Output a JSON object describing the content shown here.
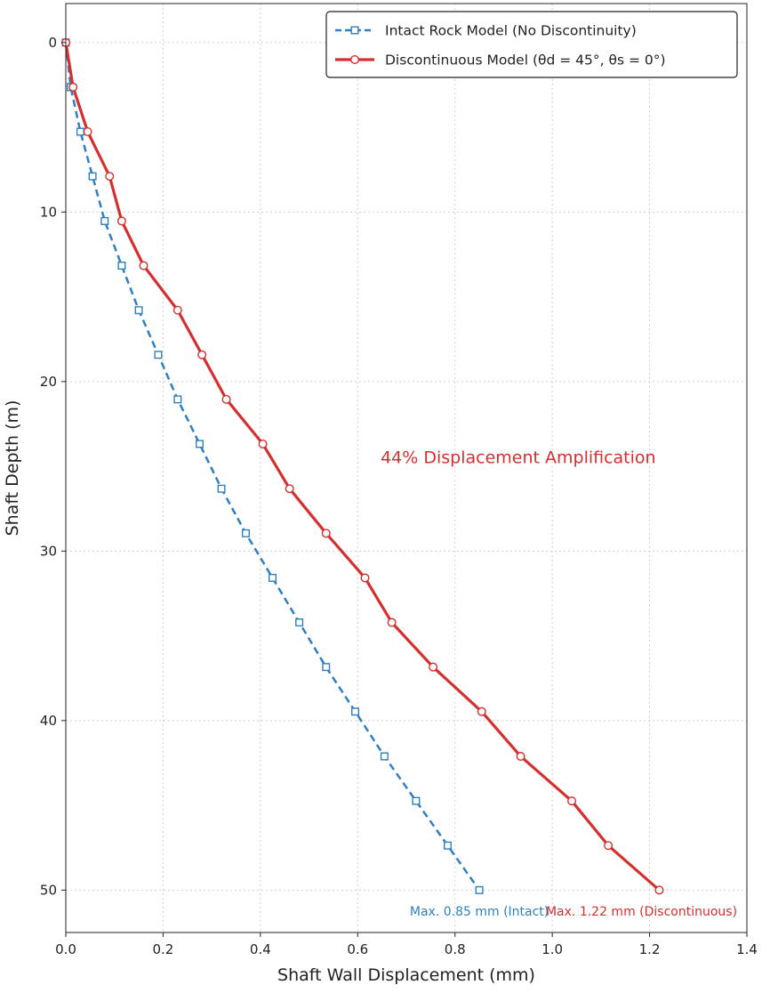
{
  "chart_data": {
    "type": "line",
    "xlabel": "Shaft Wall Displacement (mm)",
    "ylabel": "Shaft Depth (m)",
    "xlim": [
      0.0,
      1.4
    ],
    "ylim": [
      52.5,
      -2.3
    ],
    "y_inverted": true,
    "grid": true,
    "legend_position": "top-right",
    "x_ticks": [
      "0.0",
      "0.2",
      "0.4",
      "0.6",
      "0.8",
      "1.0",
      "1.2",
      "1.4"
    ],
    "y_ticks": [
      "0",
      "10",
      "20",
      "30",
      "40",
      "50"
    ],
    "series": [
      {
        "name": "Intact Rock Model (No Discontinuity)",
        "color": "#2f7fc1",
        "line_style": "dashed",
        "marker": "square-open",
        "x": [
          0.0,
          0.01,
          0.03,
          0.055,
          0.08,
          0.115,
          0.15,
          0.19,
          0.23,
          0.275,
          0.32,
          0.37,
          0.425,
          0.48,
          0.535,
          0.595,
          0.655,
          0.72,
          0.785,
          0.85
        ],
        "y": [
          0.0,
          2.63,
          5.26,
          7.89,
          10.53,
          13.16,
          15.79,
          18.42,
          21.05,
          23.68,
          26.32,
          28.95,
          31.58,
          34.21,
          36.84,
          39.47,
          42.11,
          44.74,
          47.37,
          50.0
        ]
      },
      {
        "name": "Discontinuous Model (θd = 45°, θs = 0°)",
        "color": "#d62f2f",
        "line_style": "solid",
        "marker": "circle-open",
        "x": [
          0.0,
          0.015,
          0.045,
          0.09,
          0.115,
          0.16,
          0.23,
          0.28,
          0.33,
          0.405,
          0.46,
          0.535,
          0.615,
          0.67,
          0.755,
          0.855,
          0.935,
          1.04,
          1.115,
          1.22
        ],
        "y": [
          0.0,
          2.63,
          5.26,
          7.89,
          10.53,
          13.16,
          15.79,
          18.42,
          21.05,
          23.68,
          26.32,
          28.95,
          31.58,
          34.21,
          36.84,
          39.47,
          42.11,
          44.74,
          47.37,
          50.0
        ]
      }
    ],
    "annotations": [
      {
        "text": "44% Displacement Amplification",
        "x": 0.93,
        "y": 24.8,
        "color": "#d62f2f"
      },
      {
        "text": "Max. 0.85 mm (Intact)",
        "x": 0.85,
        "y": 51.5,
        "color": "#2f7fc1"
      },
      {
        "text": "Max. 1.22 mm (Discontinuous)",
        "x": 1.38,
        "y": 51.5,
        "color": "#d62f2f"
      }
    ]
  }
}
